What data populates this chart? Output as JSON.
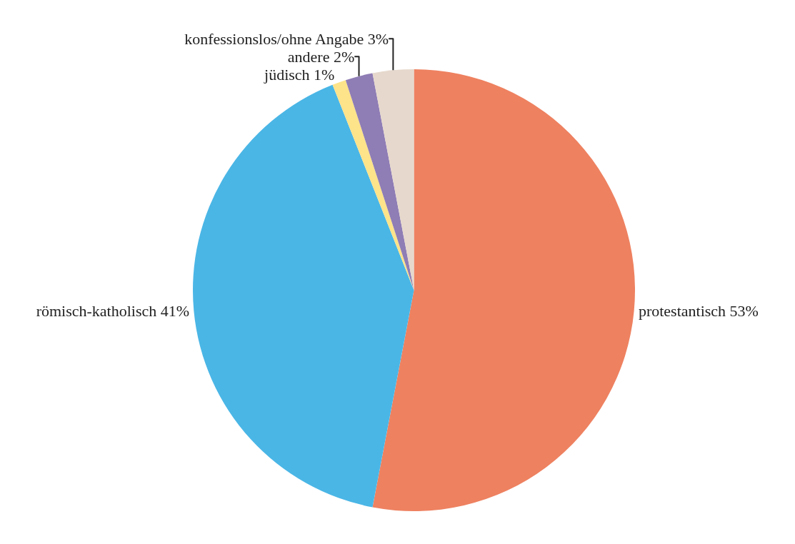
{
  "chart_data": {
    "type": "pie",
    "categories": [
      "protestantisch",
      "römisch-katholisch",
      "jüdisch",
      "andere",
      "konfessionslos/ohne Angabe"
    ],
    "values": [
      53,
      41,
      1,
      2,
      3
    ],
    "value_labels": [
      "53%",
      "41%",
      "1%",
      "2%",
      "3%"
    ],
    "colors": [
      "#ee8160",
      "#4ab6e6",
      "#fde38a",
      "#8f7db5",
      "#e6d8cc"
    ],
    "legend": false
  }
}
